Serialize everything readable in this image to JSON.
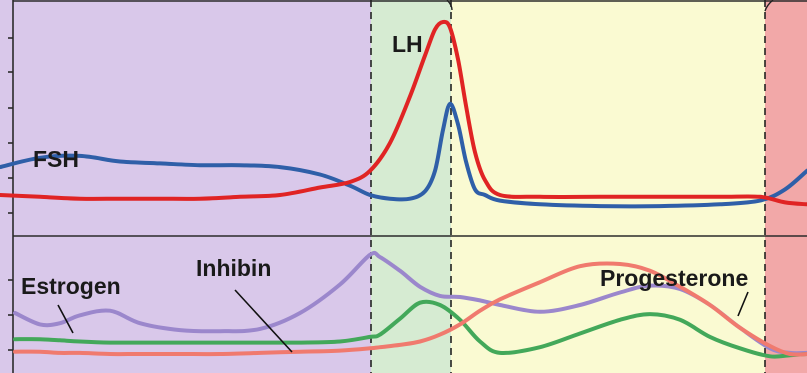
{
  "colors": {
    "follicular_phase": "#d9c8ea",
    "ovulation_phase": "#d6ebd2",
    "luteal_phase": "#fafad2",
    "menstrual_phase": "#f2a8a8",
    "fsh": "#2f5fa8",
    "lh": "#e02424",
    "estrogen": "#9b87cc",
    "inhibin": "#43a85a",
    "progesterone": "#f07a6e",
    "axis": "#2a2a2a"
  },
  "chart_data": [
    {
      "type": "line",
      "title": "",
      "xlabel": "",
      "ylabel": "",
      "grid": false,
      "x": [
        0,
        40,
        80,
        120,
        160,
        200,
        240,
        280,
        320,
        350,
        370,
        390,
        410,
        425,
        435,
        443,
        450,
        458,
        466,
        475,
        485,
        500,
        540,
        600,
        660,
        720,
        760,
        785,
        807
      ],
      "series": [
        {
          "name": "FSH",
          "color_key": "fsh",
          "values": [
            0.22,
            0.27,
            0.28,
            0.25,
            0.24,
            0.23,
            0.23,
            0.22,
            0.18,
            0.12,
            0.07,
            0.05,
            0.05,
            0.09,
            0.2,
            0.42,
            0.56,
            0.45,
            0.25,
            0.1,
            0.07,
            0.04,
            0.02,
            0.01,
            0.01,
            0.02,
            0.04,
            0.1,
            0.2
          ]
        },
        {
          "name": "LH",
          "color_key": "lh",
          "values": [
            0.07,
            0.06,
            0.05,
            0.05,
            0.05,
            0.05,
            0.06,
            0.07,
            0.11,
            0.14,
            0.2,
            0.35,
            0.6,
            0.82,
            0.96,
            1.0,
            0.97,
            0.8,
            0.55,
            0.3,
            0.15,
            0.07,
            0.06,
            0.06,
            0.06,
            0.06,
            0.06,
            0.03,
            0.02
          ]
        }
      ]
    },
    {
      "type": "line",
      "title": "",
      "xlabel": "",
      "ylabel": "",
      "grid": false,
      "x": [
        15,
        40,
        60,
        80,
        110,
        140,
        180,
        220,
        260,
        300,
        340,
        370,
        380,
        400,
        420,
        440,
        460,
        480,
        500,
        540,
        580,
        620,
        650,
        680,
        710,
        740,
        770,
        790,
        807
      ],
      "series": [
        {
          "name": "Estrogen",
          "color_key": "estrogen",
          "values": [
            0.43,
            0.33,
            0.34,
            0.41,
            0.45,
            0.34,
            0.28,
            0.27,
            0.29,
            0.43,
            0.68,
            0.94,
            0.92,
            0.8,
            0.66,
            0.58,
            0.57,
            0.54,
            0.5,
            0.44,
            0.5,
            0.61,
            0.67,
            0.64,
            0.5,
            0.3,
            0.12,
            0.08,
            0.08
          ]
        },
        {
          "name": "Inhibin",
          "color_key": "inhibin",
          "values": [
            0.2,
            0.2,
            0.19,
            0.18,
            0.17,
            0.17,
            0.17,
            0.17,
            0.17,
            0.17,
            0.18,
            0.22,
            0.24,
            0.38,
            0.52,
            0.5,
            0.37,
            0.18,
            0.08,
            0.13,
            0.25,
            0.37,
            0.42,
            0.37,
            0.22,
            0.12,
            0.05,
            0.06,
            0.07
          ]
        },
        {
          "name": "Progesterone",
          "color_key": "progesterone",
          "values": [
            0.09,
            0.09,
            0.08,
            0.08,
            0.07,
            0.07,
            0.07,
            0.07,
            0.08,
            0.09,
            0.1,
            0.12,
            0.13,
            0.15,
            0.18,
            0.24,
            0.33,
            0.45,
            0.55,
            0.7,
            0.84,
            0.86,
            0.8,
            0.66,
            0.5,
            0.3,
            0.14,
            0.07,
            0.07
          ]
        }
      ]
    }
  ],
  "labels": {
    "fsh": "FSH",
    "lh": "LH",
    "estrogen": "Estrogen",
    "inhibin": "Inhibin",
    "progesterone": "Progesterone"
  }
}
